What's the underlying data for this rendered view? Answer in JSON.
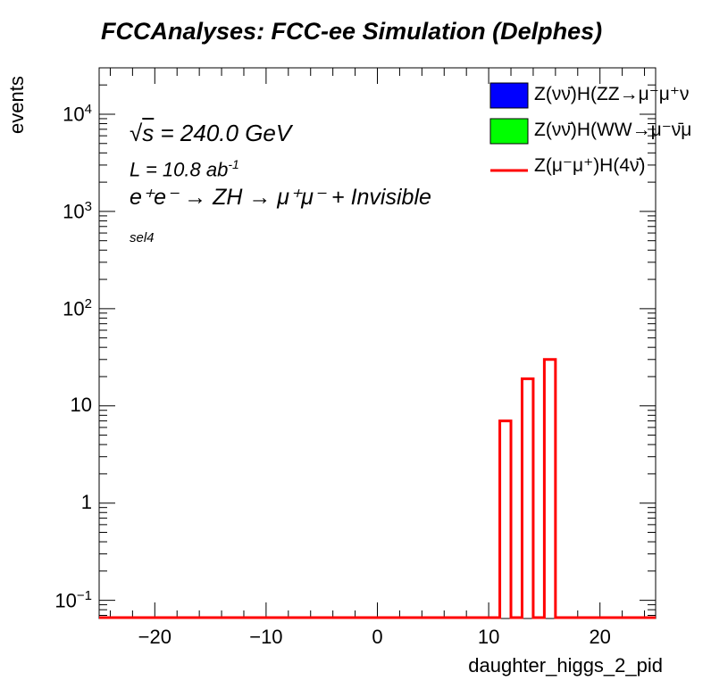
{
  "title": "FCCAnalyses: FCC-ee Simulation (Delphes)",
  "chart_data": {
    "type": "histogram",
    "xlabel": "daughter_higgs_2_pid",
    "ylabel": "events",
    "xlim": [
      -25,
      25
    ],
    "ylim": [
      0.065,
      30000
    ],
    "yscale": "log",
    "grid": false,
    "legend_position": "top-right",
    "x_ticks": [
      "−20",
      "−10",
      "0",
      "10",
      "20"
    ],
    "x_tick_values": [
      -20,
      -10,
      0,
      10,
      20
    ],
    "y_ticks": [
      {
        "value": 0.1,
        "base": "10",
        "exp": "−1"
      },
      {
        "value": 1,
        "base": "1",
        "exp": ""
      },
      {
        "value": 10,
        "base": "10",
        "exp": ""
      },
      {
        "value": 100,
        "base": "10",
        "exp": "2"
      },
      {
        "value": 1000,
        "base": "10",
        "exp": "3"
      },
      {
        "value": 10000,
        "base": "10",
        "exp": "4"
      }
    ],
    "series": [
      {
        "name": "Z(νν̄)H(ZZ→μ⁻μ⁺ν",
        "style": "filled",
        "color": "#0000ff",
        "bins": []
      },
      {
        "name": "Z(νν̄)H(WW→μ⁻ν̄μ",
        "style": "filled",
        "color": "#00ff00",
        "bins": []
      },
      {
        "name": "Z(μ⁻μ⁺)H(4ν̄)",
        "style": "line",
        "color": "#ff0000",
        "bins": [
          {
            "x0": 11,
            "x1": 12,
            "value": 7
          },
          {
            "x0": 13,
            "x1": 14,
            "value": 19
          },
          {
            "x0": 15,
            "x1": 16,
            "value": 30
          }
        ]
      }
    ],
    "annotations": {
      "sqrt_s": "= 240.0 GeV",
      "lumi": "L = 10.8 ab",
      "lumi_exp": "-1",
      "process": "e⁺e⁻ → ZH → μ⁺μ⁻ + Invisible",
      "selection": "sel4"
    }
  }
}
